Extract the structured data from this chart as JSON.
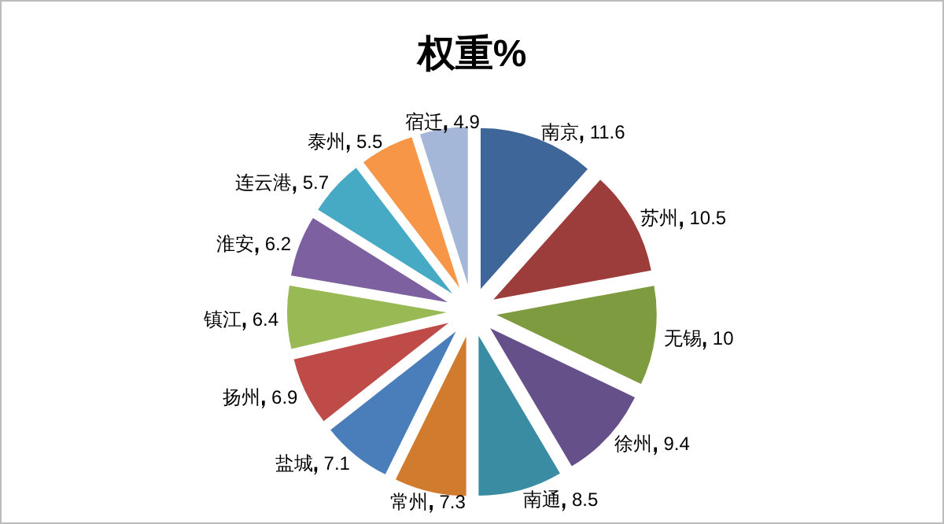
{
  "chart_data": {
    "type": "pie",
    "title": "权重%",
    "categories": [
      "南京",
      "苏州",
      "无锡",
      "徐州",
      "南通",
      "常州",
      "盐城",
      "扬州",
      "镇江",
      "淮安",
      "连云港",
      "泰州",
      "宿迁"
    ],
    "values": [
      11.6,
      10.5,
      10,
      9.4,
      8.5,
      7.3,
      7.1,
      6.9,
      6.4,
      6.2,
      5.7,
      5.5,
      4.9
    ],
    "colors": [
      "#3f6699",
      "#9d3d3b",
      "#7f9b3f",
      "#66508a",
      "#3a8ca3",
      "#d17b2f",
      "#4a7ebb",
      "#be4b48",
      "#98b954",
      "#7d60a0",
      "#46aac5",
      "#f79646",
      "#a5b7d8"
    ],
    "data_labels": true
  }
}
